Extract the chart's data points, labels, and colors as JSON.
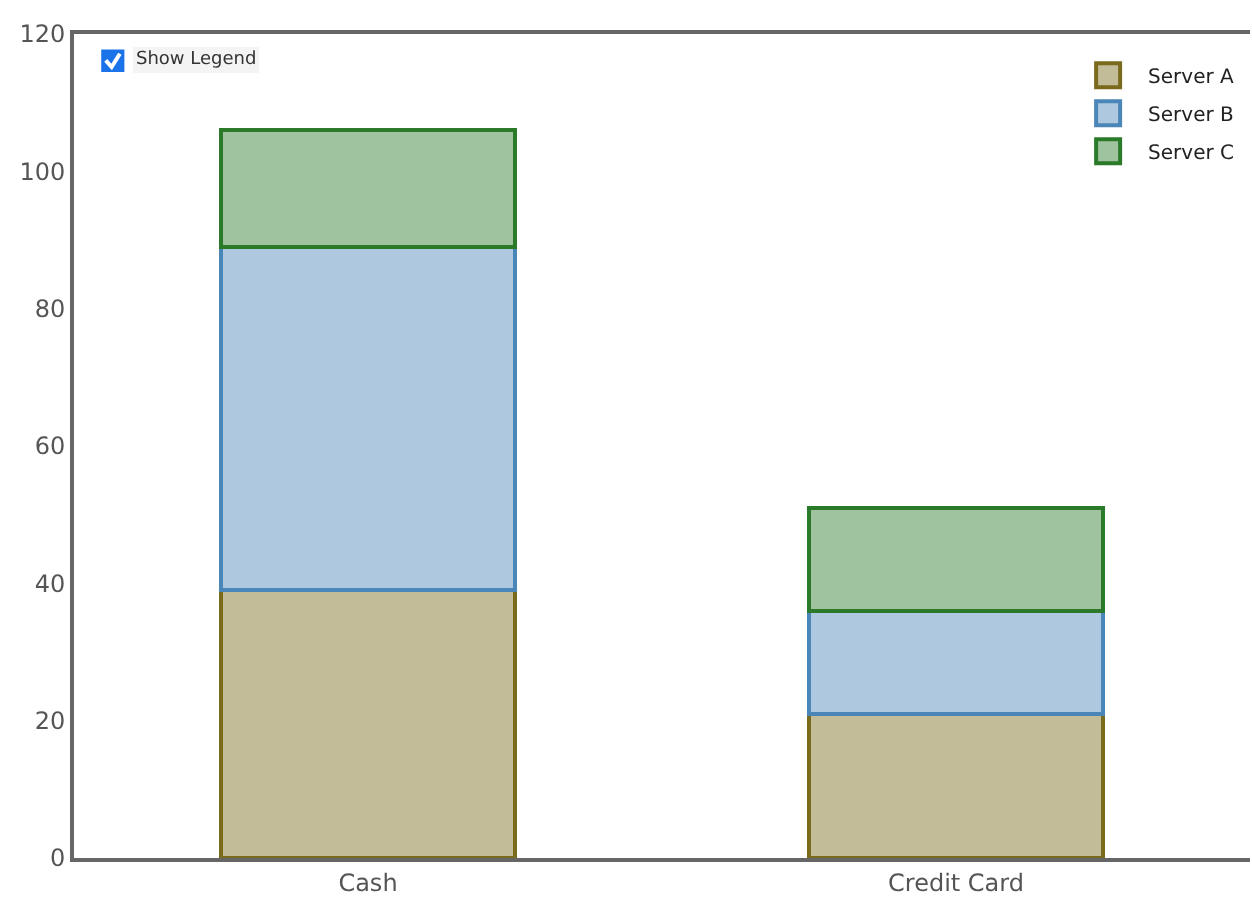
{
  "chart_data": {
    "type": "bar",
    "stacked": true,
    "categories": [
      "Cash",
      "Credit Card"
    ],
    "series": [
      {
        "name": "Server A",
        "color": "#7a6a1c",
        "values": [
          39,
          21
        ]
      },
      {
        "name": "Server B",
        "color": "#4a86b8",
        "values": [
          50,
          15
        ]
      },
      {
        "name": "Server C",
        "color": "#2a7a2a",
        "values": [
          17,
          15
        ]
      }
    ],
    "ylim": [
      0,
      120
    ],
    "yticks": [
      0,
      20,
      40,
      60,
      80,
      100,
      120
    ],
    "grid": false,
    "legend": "top right",
    "annotations": [
      "Show Legend"
    ]
  }
}
